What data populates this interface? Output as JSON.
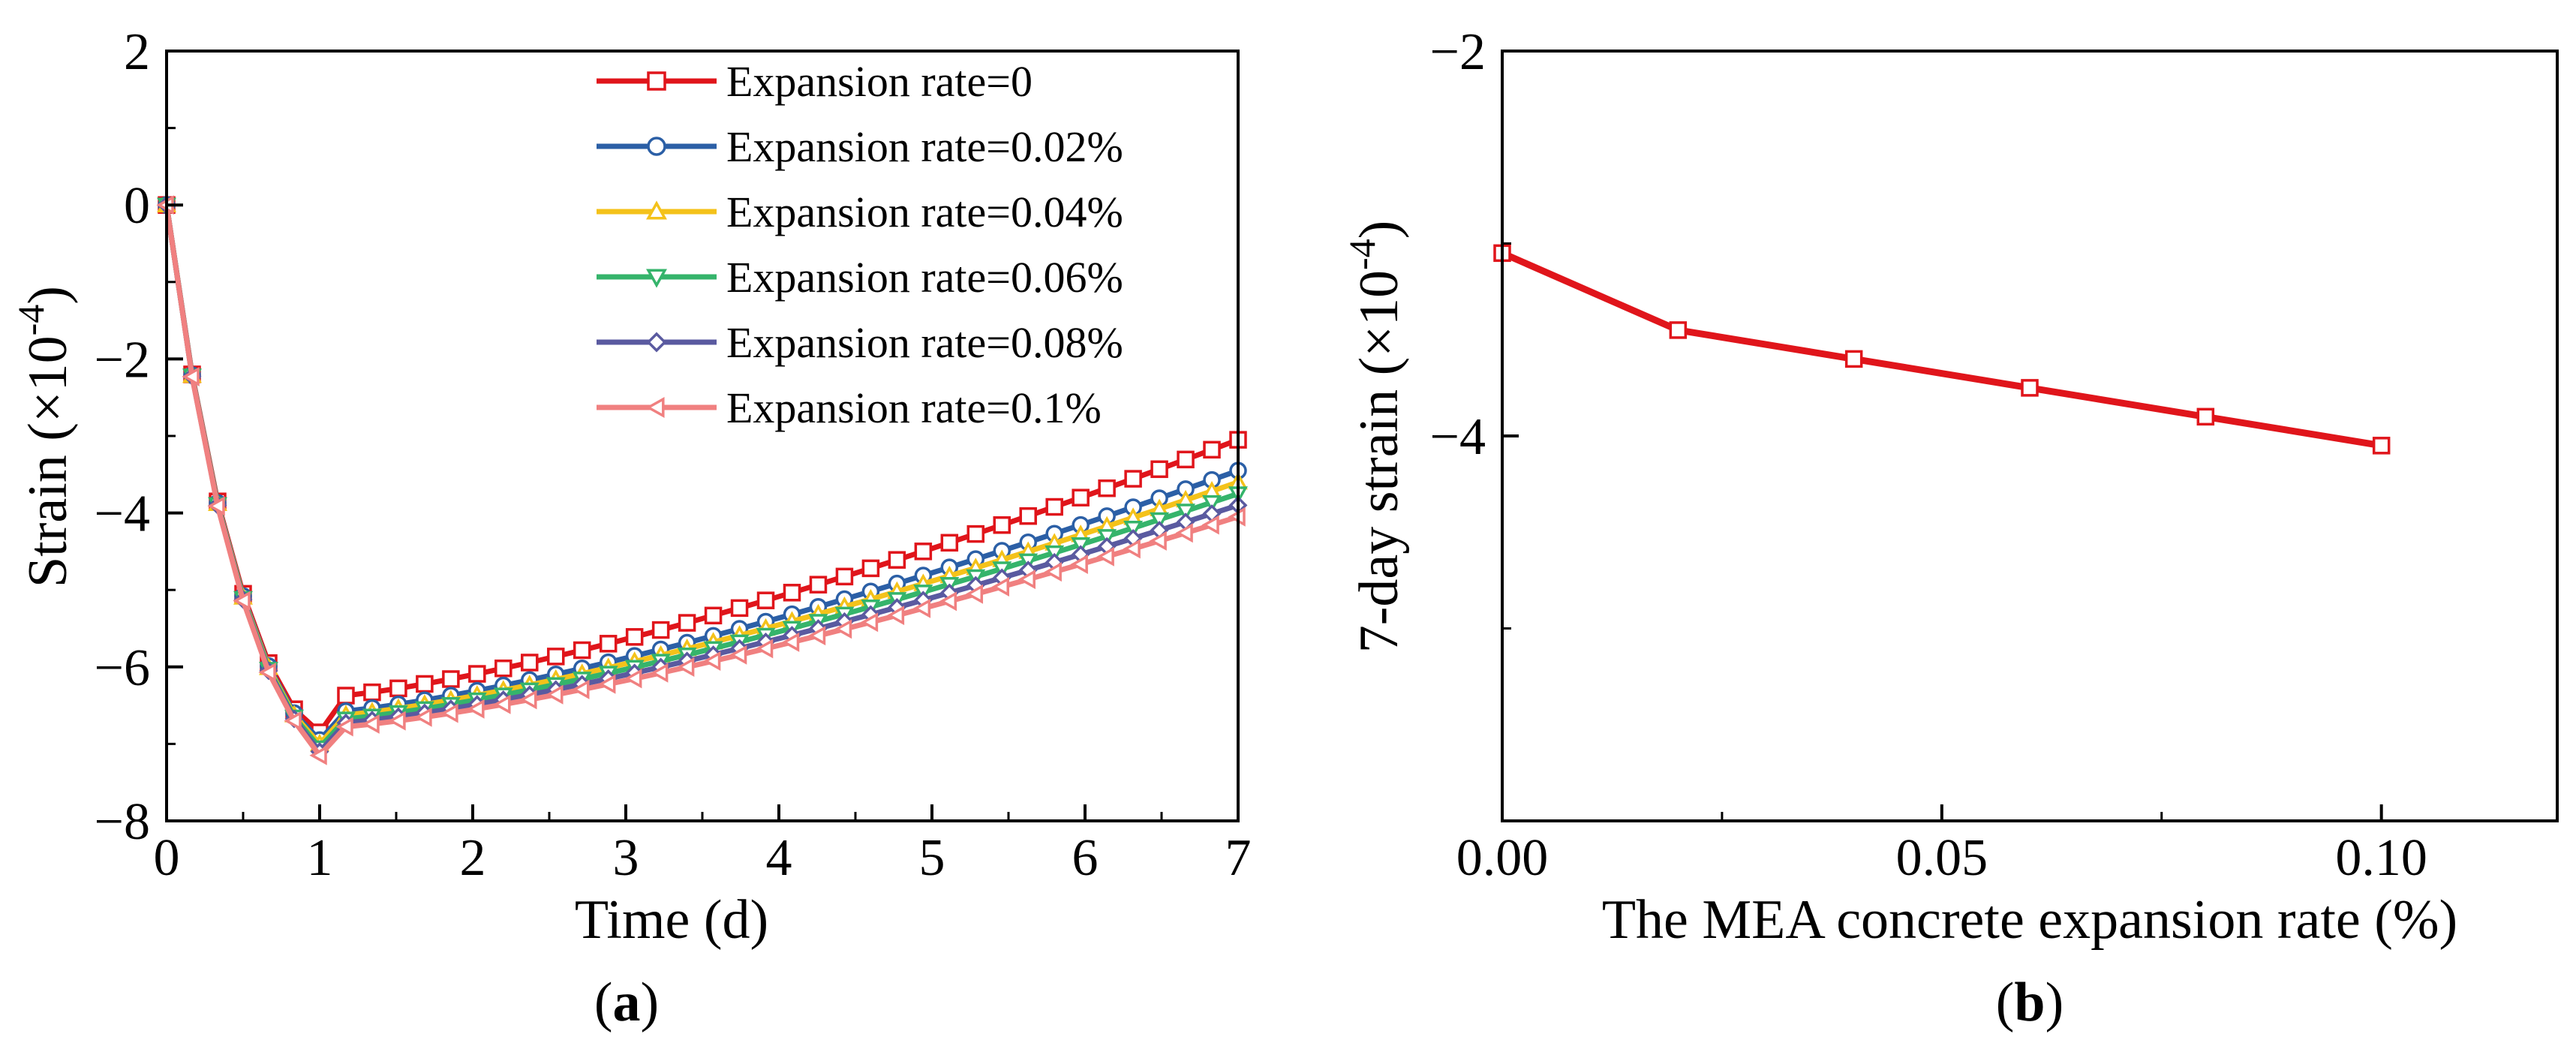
{
  "chart_data": [
    {
      "panel": "a",
      "type": "line",
      "xlabel": "Time (d)",
      "ylabel_text": "Strain (×10",
      "ylabel_exp": "-4",
      "ylabel_close": ")",
      "xlim": [
        0,
        7
      ],
      "ylim": [
        -8,
        2
      ],
      "xticks": [
        0,
        1,
        2,
        3,
        4,
        5,
        6,
        7
      ],
      "yticks": [
        2,
        0,
        -2,
        -4,
        -6,
        -8
      ],
      "ytick_labels": [
        "2",
        "0",
        "−2",
        "−4",
        "−6",
        "−8"
      ],
      "legend_position": "top-right",
      "series": [
        {
          "name": "Expansion rate=0",
          "color": "#e0151b",
          "marker": "square",
          "peak": -6.85,
          "after": -6.4,
          "end": -3.05
        },
        {
          "name": "Expansion rate=0.02%",
          "color": "#2b5fa6",
          "marker": "circle",
          "peak": -6.95,
          "after": -6.6,
          "end": -3.45
        },
        {
          "name": "Expansion rate=0.04%",
          "color": "#f4c21a",
          "marker": "triangle-up",
          "peak": -7.0,
          "after": -6.65,
          "end": -3.6
        },
        {
          "name": "Expansion rate=0.06%",
          "color": "#35b46b",
          "marker": "triangle-down",
          "peak": -7.05,
          "after": -6.7,
          "end": -3.75
        },
        {
          "name": "Expansion rate=0.08%",
          "color": "#5a5aa0",
          "marker": "diamond",
          "peak": -7.1,
          "after": -6.75,
          "end": -3.9
        },
        {
          "name": "Expansion rate=0.1%",
          "color": "#f08080",
          "marker": "triangle-left",
          "peak": -7.15,
          "after": -6.8,
          "end": -4.05
        }
      ],
      "panel_label": "a"
    },
    {
      "panel": "b",
      "type": "line",
      "xlabel": "The MEA concrete expansion rate (%)",
      "ylabel_text": "7-day strain (×10",
      "ylabel_exp": "-4",
      "ylabel_close": ")",
      "xlim": [
        0,
        0.12
      ],
      "ylim": [
        -6,
        -2
      ],
      "xticks": [
        0,
        0.05,
        0.1
      ],
      "xtick_labels": [
        "0.00",
        "0.05",
        "0.10"
      ],
      "yticks": [
        -2,
        -4
      ],
      "ytick_labels": [
        "−2",
        "−4"
      ],
      "series": [
        {
          "name": "7-day strain",
          "color": "#e0151b",
          "marker": "square",
          "x": [
            0,
            0.02,
            0.04,
            0.06,
            0.08,
            0.1
          ],
          "y": [
            -3.05,
            -3.45,
            -3.6,
            -3.75,
            -3.9,
            -4.05
          ]
        }
      ],
      "panel_label": "b"
    }
  ],
  "labels": {
    "a_open": "(",
    "a_letter": "a",
    "a_close": ")",
    "b_open": "(",
    "b_letter": "b",
    "b_close": ")"
  }
}
